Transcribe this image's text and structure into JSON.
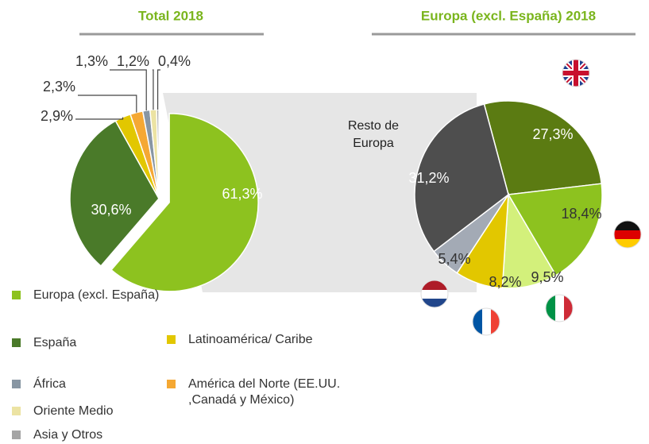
{
  "chart_data": [
    {
      "type": "pie",
      "title": "Total 2018",
      "categories": [
        "Europa (excl. España)",
        "España",
        "Latinoamérica/ Caribe",
        "América del Norte (EE.UU. ,Canadá y México)",
        "África",
        "Oriente Medio",
        "Asia y Otros"
      ],
      "values": [
        61.3,
        30.6,
        2.9,
        2.3,
        1.3,
        1.2,
        0.4
      ],
      "value_labels": [
        "61,3%",
        "30,6%",
        "2,9%",
        "2,3%",
        "1,3%",
        "1,2%",
        "0,4%"
      ],
      "colors": [
        "#8dc21f",
        "#4a7a29",
        "#e2c700",
        "#f5a833",
        "#8896a3",
        "#ece3a3",
        "#a5a5a5"
      ],
      "legend": true
    },
    {
      "type": "pie",
      "title": "Europa (excl. España) 2018",
      "categories": [
        null,
        null,
        null,
        null,
        null,
        "Resto de Europa"
      ],
      "values": [
        27.3,
        18.4,
        9.5,
        8.2,
        5.4,
        31.2
      ],
      "value_labels": [
        "27,3%",
        "18,4%",
        "9,5%",
        "8,2%",
        "5,4%",
        "31,2%"
      ],
      "colors": [
        "#5b7b12",
        "#8dc21f",
        "#d3f07b",
        "#e2c700",
        "#a3aab5",
        "#4e4e4e"
      ]
    }
  ]
}
